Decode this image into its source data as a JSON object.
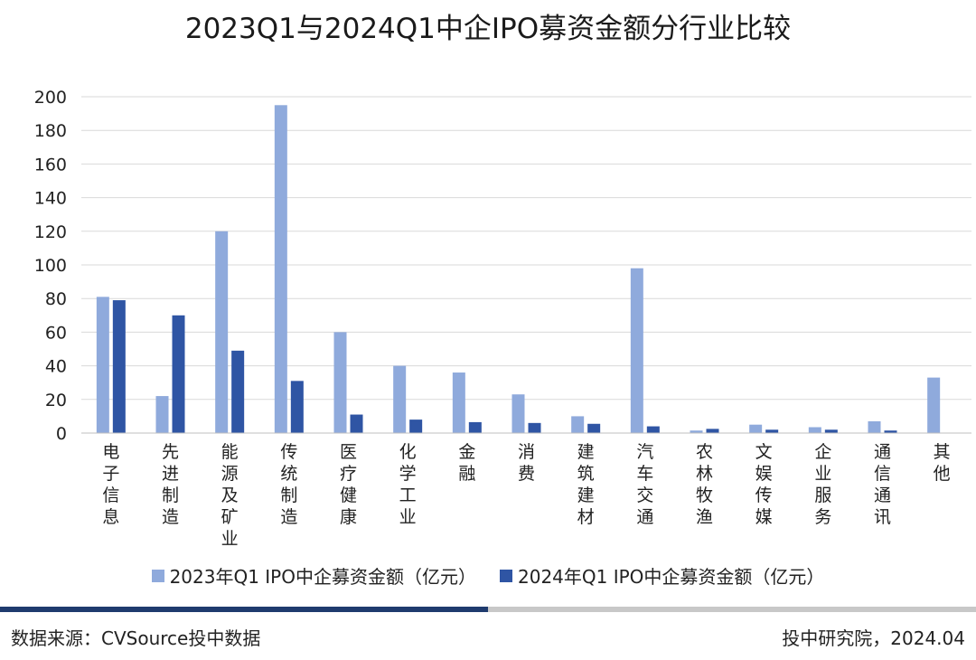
{
  "chart_data": {
    "type": "bar",
    "title": "2023Q1与2024Q1中企IPO募资金额分行业比较",
    "categories": [
      "电子信息",
      "先进制造",
      "能源及矿业",
      "传统制造",
      "医疗健康",
      "化学工业",
      "金融",
      "消费",
      "建筑建材",
      "汽车交通",
      "农林牧渔",
      "文娱传媒",
      "企业服务",
      "通信通讯",
      "其他"
    ],
    "series": [
      {
        "name": "2023年Q1 IPO中企募资金额（亿元）",
        "color": "#8faadc",
        "values": [
          81,
          22,
          120,
          195,
          60,
          40,
          36,
          23,
          10,
          98,
          1.5,
          5,
          3.5,
          7,
          33
        ]
      },
      {
        "name": "2024年Q1 IPO中企募资金额（亿元）",
        "color": "#2f55a4",
        "values": [
          79,
          70,
          49,
          31,
          11,
          8,
          6.5,
          6,
          5.5,
          4,
          2.5,
          2,
          2,
          1.5,
          0
        ]
      }
    ],
    "yticks": [
      "0",
      "20",
      "40",
      "60",
      "80",
      "100",
      "120",
      "140",
      "160",
      "180",
      "200"
    ],
    "ylim": [
      0,
      200
    ],
    "grid": true,
    "legend_position": "bottom"
  },
  "footer": {
    "source": "数据来源：CVSource投中数据",
    "credit": "投中研究院，2024.04"
  }
}
